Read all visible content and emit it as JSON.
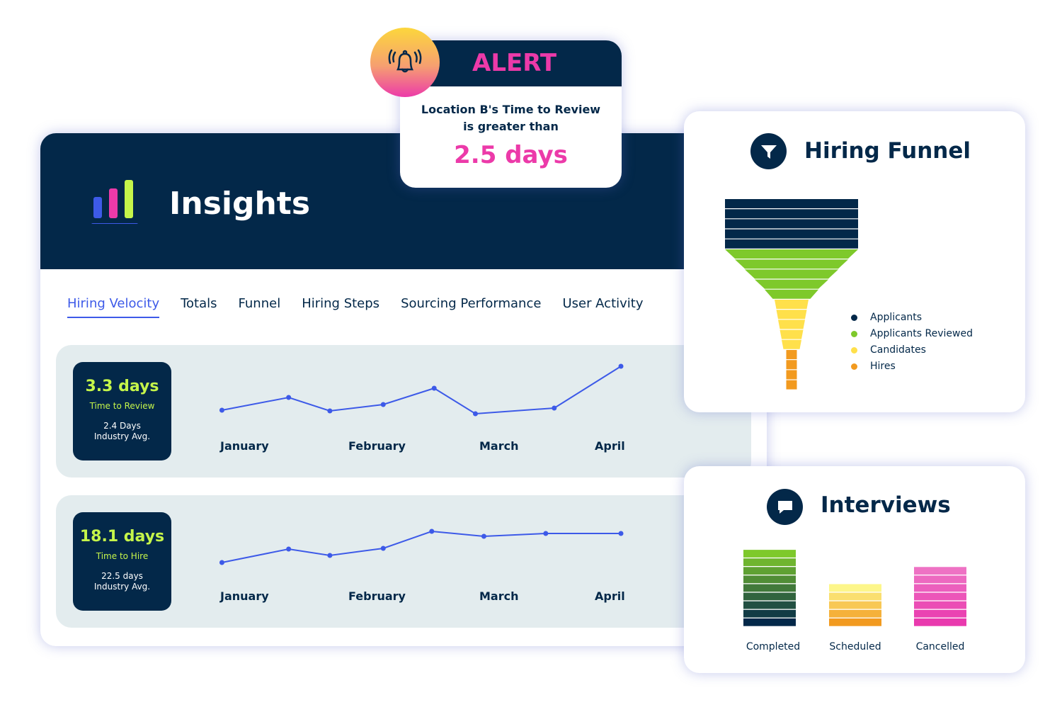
{
  "insights": {
    "title": "Insights",
    "logo_colors": [
      "#3d5ae8",
      "#ec3aa9",
      "#c5f54a"
    ],
    "tabs": [
      {
        "label": "Hiring Velocity",
        "active": true
      },
      {
        "label": "Totals"
      },
      {
        "label": "Funnel"
      },
      {
        "label": "Hiring Steps"
      },
      {
        "label": "Sourcing Performance"
      },
      {
        "label": "User Activity"
      }
    ]
  },
  "metrics": [
    {
      "value": "3.3 days",
      "label": "Time to Review",
      "avg_value": "2.4 Days",
      "avg_label": "Industry Avg."
    },
    {
      "value": "18.1 days",
      "label": "Time to Hire",
      "avg_value": "22.5 days",
      "avg_label": "Industry Avg."
    }
  ],
  "chart_data": [
    {
      "type": "line",
      "categories": [
        "January",
        "February",
        "March",
        "April"
      ],
      "x": [
        -0.19,
        0.36,
        0.7,
        1.14,
        1.56,
        1.9,
        2.55,
        3.1
      ],
      "values": [
        21,
        39,
        20,
        29,
        52,
        16,
        24,
        83
      ],
      "color": "#3d5ae8",
      "grid": false
    },
    {
      "type": "line",
      "categories": [
        "January",
        "February",
        "March",
        "April"
      ],
      "x": [
        -0.19,
        0.36,
        0.7,
        1.14,
        1.54,
        1.97,
        2.48,
        3.1
      ],
      "values": [
        6,
        25,
        16,
        26,
        50,
        43,
        47,
        47
      ],
      "color": "#3d5ae8",
      "grid": false
    }
  ],
  "alert": {
    "title": "ALERT",
    "message_line1": "Location B's Time to Review",
    "message_line2": "is greater than",
    "value": "2.5 days",
    "icon": "bell-ringing-icon"
  },
  "funnel": {
    "title": "Hiring Funnel",
    "icon": "funnel-icon",
    "stages": [
      {
        "label": "Applicants",
        "color": "#032849",
        "segments": 5
      },
      {
        "label": "Applicants Reviewed",
        "color": "#7ec92b",
        "segments": 5
      },
      {
        "label": "Candidates",
        "color": "#ffe04b",
        "segments": 5
      },
      {
        "label": "Hires",
        "color": "#f29a1f",
        "segments": 4
      }
    ]
  },
  "interviews": {
    "title": "Interviews",
    "icon": "chat-bubble-icon",
    "bars": [
      {
        "label": "Completed",
        "segments": 9,
        "colors": [
          "#7ec92b",
          "#032849"
        ]
      },
      {
        "label": "Scheduled",
        "segments": 5,
        "colors": [
          "#fdf68a",
          "#f29a1f"
        ]
      },
      {
        "label": "Cancelled",
        "segments": 7,
        "colors": [
          "#ee72c4",
          "#e93aae"
        ]
      }
    ]
  }
}
